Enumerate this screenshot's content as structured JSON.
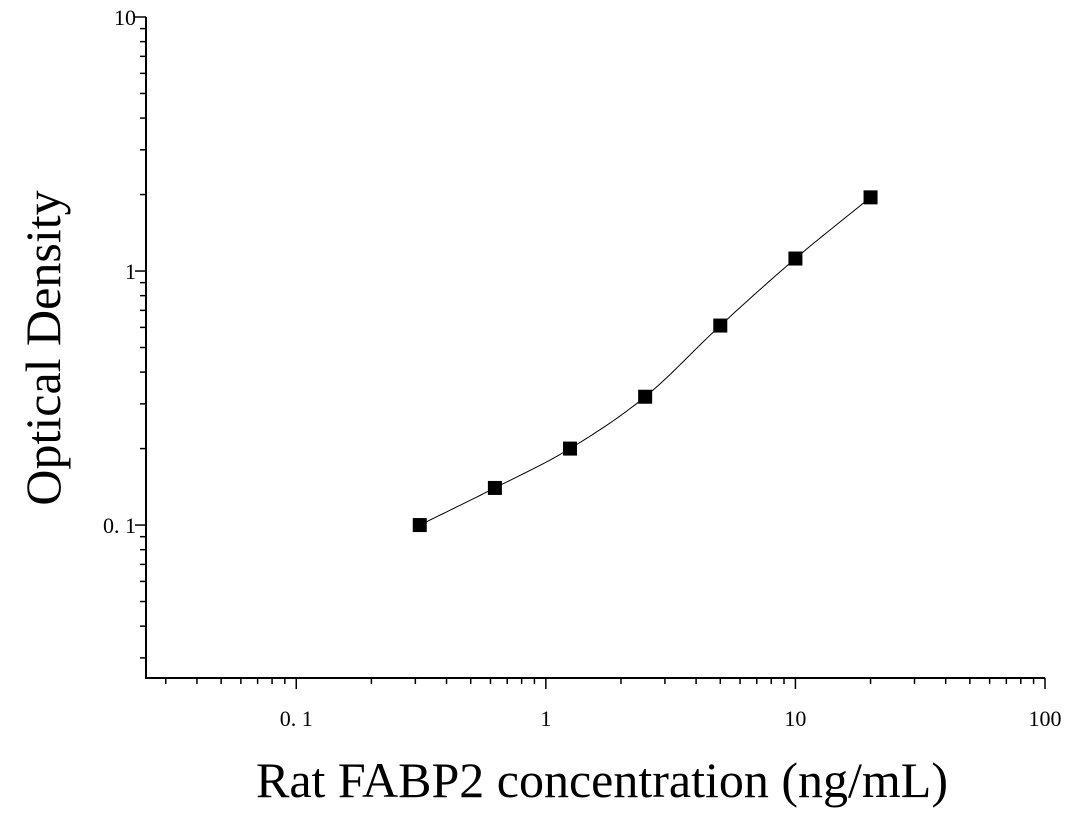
{
  "chart_data": {
    "type": "scatter",
    "title": "",
    "xlabel": "Rat FABP2 concentration (ng/mL)",
    "ylabel": "Optical Density",
    "x_scale": "log",
    "y_scale": "log",
    "xlim": [
      0.025,
      100
    ],
    "ylim": [
      0.025,
      10
    ],
    "x_ticks": [
      {
        "value": 0.1,
        "label": "0. 1"
      },
      {
        "value": 1,
        "label": "1"
      },
      {
        "value": 10,
        "label": "10"
      },
      {
        "value": 100,
        "label": "100"
      }
    ],
    "y_ticks": [
      {
        "value": 0.1,
        "label": "0. 1"
      },
      {
        "value": 1,
        "label": "1"
      },
      {
        "value": 10,
        "label": "10"
      }
    ],
    "grid": false,
    "legend": "none",
    "colors": {
      "points": "#000000",
      "curve": "#000000",
      "axes": "#000000"
    },
    "series": [
      {
        "marker": "square",
        "fit_curve": true,
        "x": [
          0.3125,
          0.625,
          1.25,
          2.5,
          5,
          10,
          20
        ],
        "y": [
          0.1,
          0.14,
          0.2,
          0.32,
          0.61,
          1.12,
          1.95
        ]
      }
    ]
  }
}
